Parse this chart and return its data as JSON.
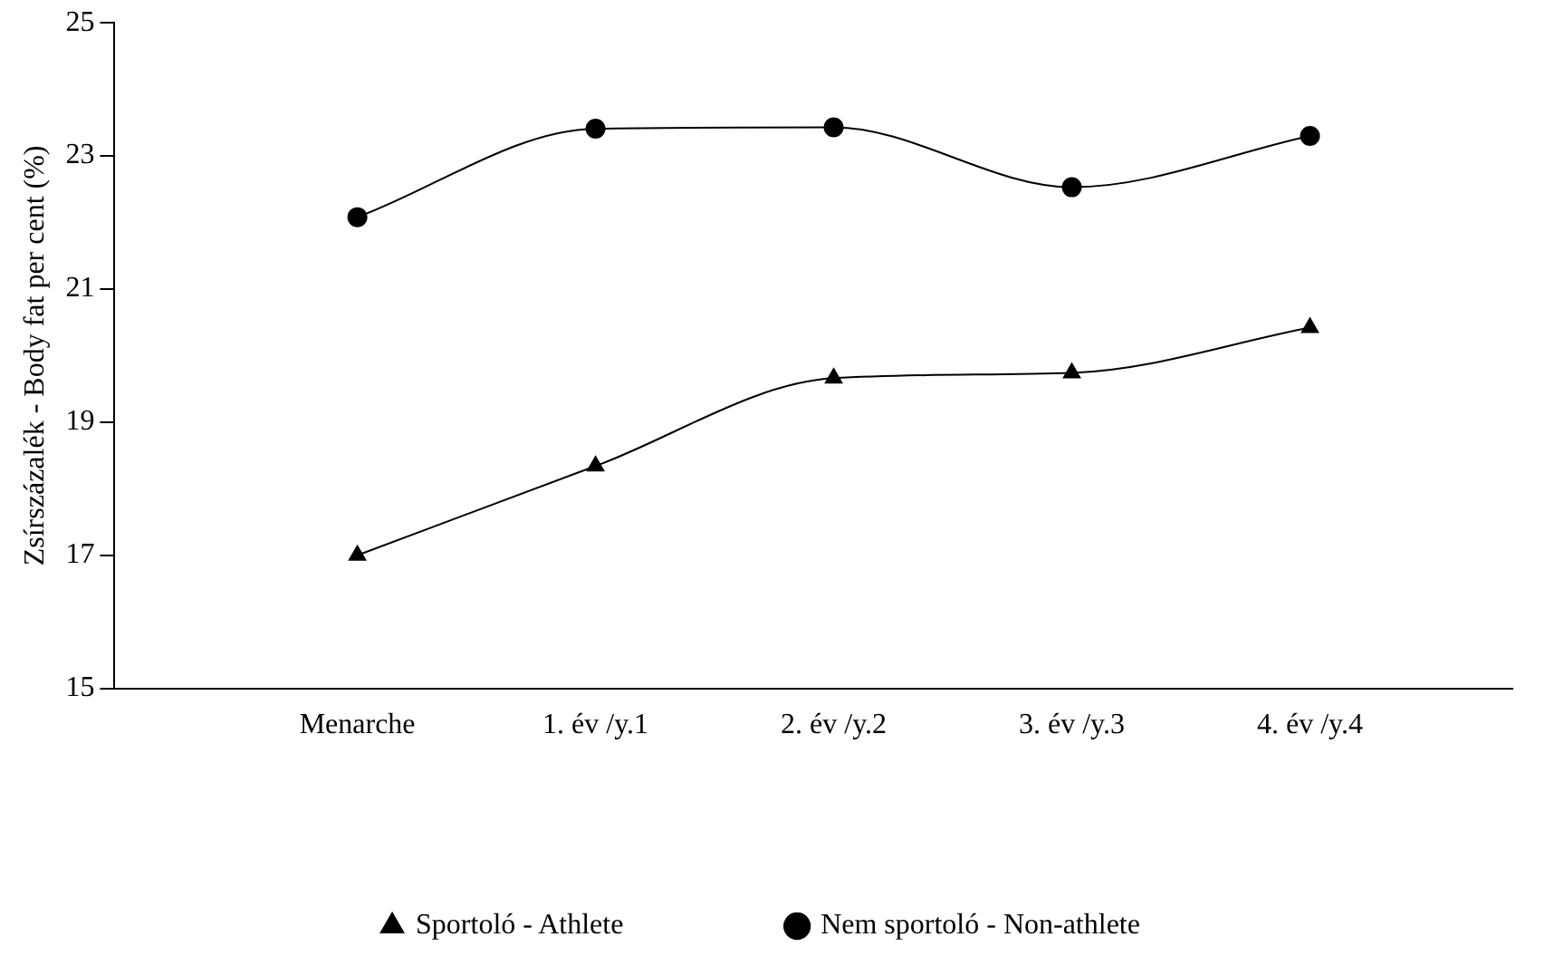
{
  "chart_data": {
    "type": "line",
    "ylabel": "Zsírszázalék - Body fat per cent (%)",
    "categories": [
      "Menarche",
      "1. év /y.1",
      "2. év /y.2",
      "3. év /y.3",
      "4. év /y.4"
    ],
    "series": [
      {
        "name": "Sportoló - Athlete",
        "color": "#000000",
        "marker": "triangle",
        "values": [
          17.0,
          18.34,
          19.66,
          19.74,
          20.42
        ]
      },
      {
        "name": "Nem sportoló - Non-athlete",
        "color": "#000000",
        "marker": "circle",
        "values": [
          22.08,
          23.41,
          23.43,
          22.53,
          23.3
        ]
      }
    ],
    "ylim": [
      15,
      25
    ],
    "yticks": [
      15,
      17,
      19,
      21,
      23,
      25
    ],
    "grid": false,
    "legend": "bottom",
    "line_style": "solid"
  }
}
